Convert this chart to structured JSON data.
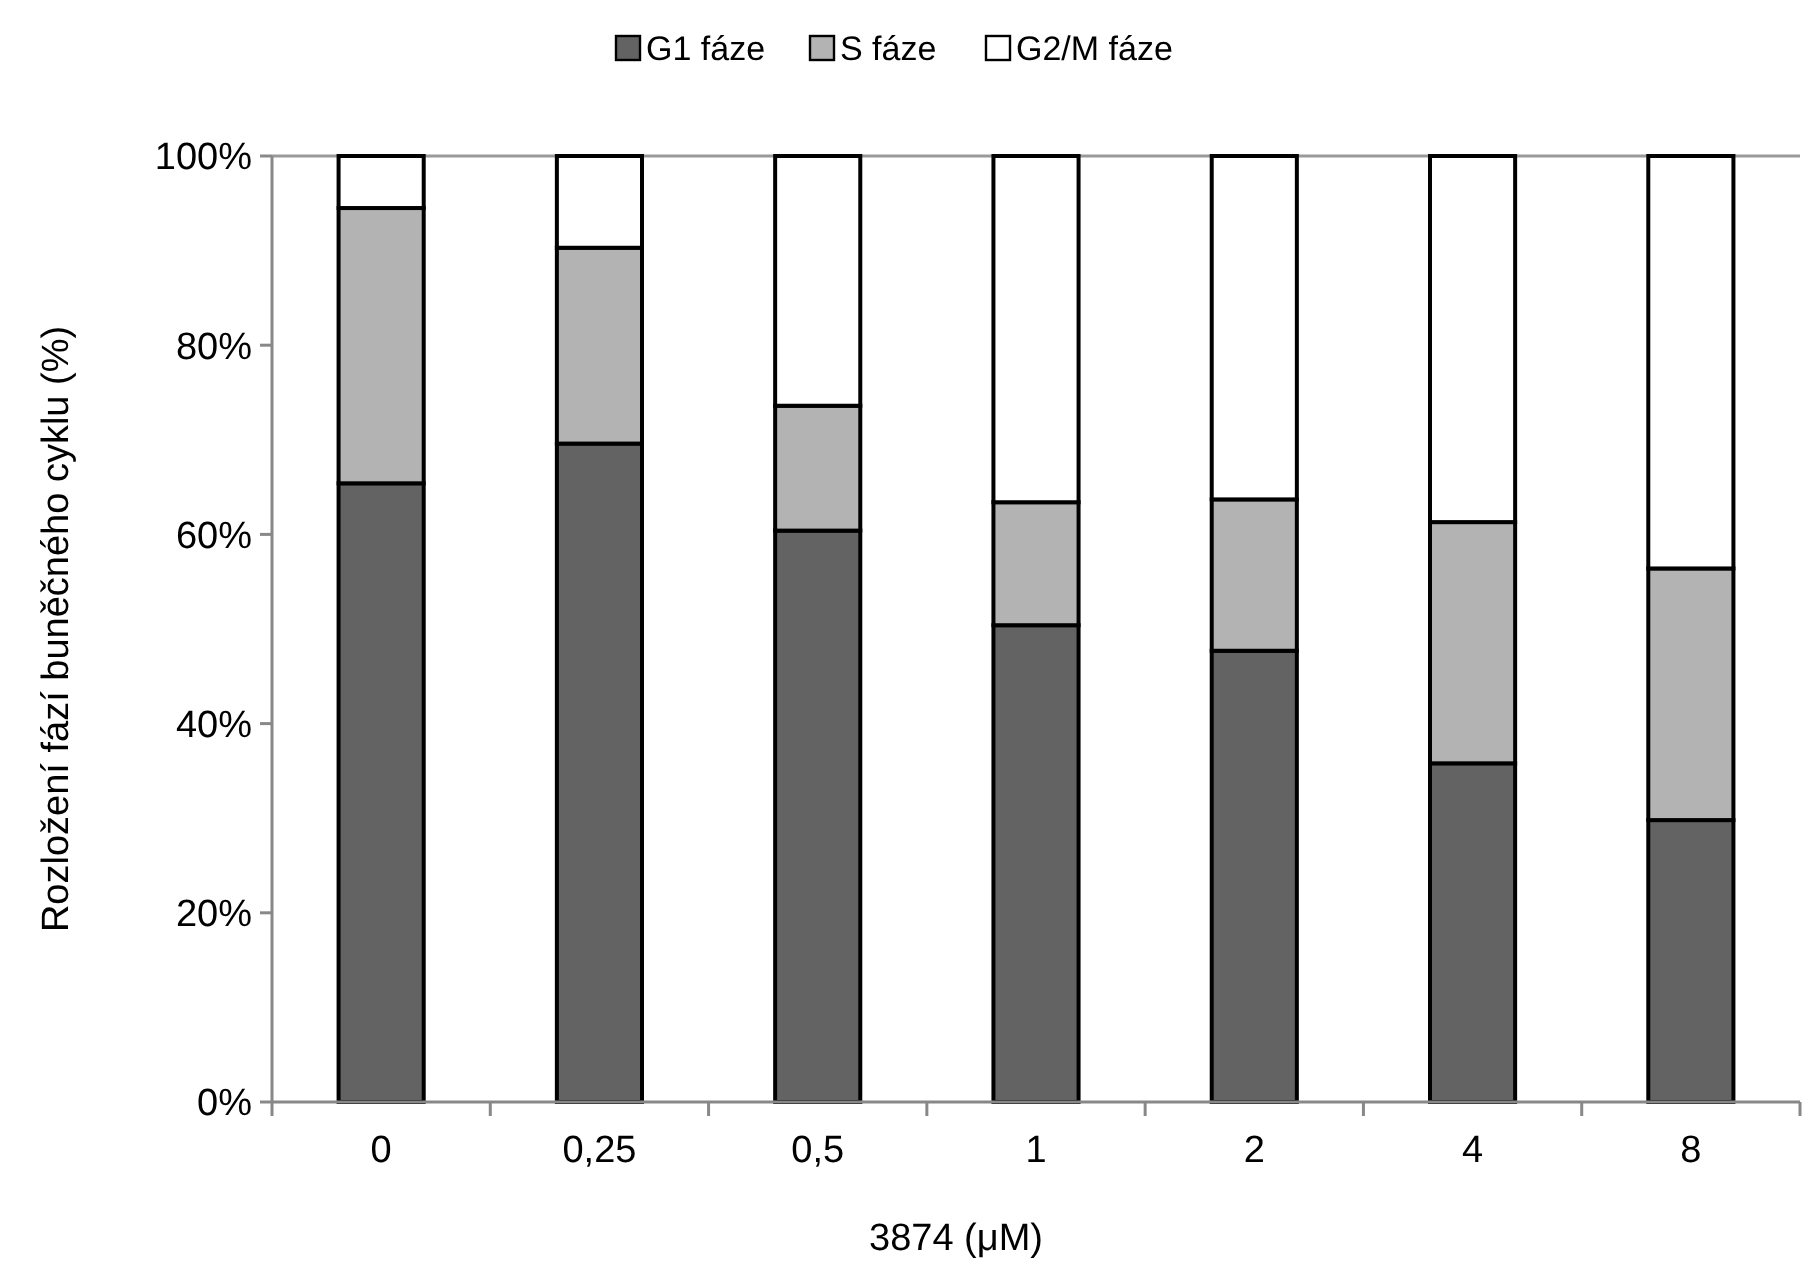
{
  "chart_data": {
    "type": "bar",
    "stacked": true,
    "xlabel": "3874 (μM)",
    "ylabel": "Rozložení fází buněčného cyklu (%)",
    "categories": [
      "0",
      "0,25",
      "0,5",
      "1",
      "2",
      "4",
      "8"
    ],
    "series": [
      {
        "name": "G1 fáze",
        "color": "#636363",
        "values": [
          65.4,
          69.6,
          60.4,
          50.4,
          47.7,
          35.8,
          29.8
        ]
      },
      {
        "name": "S fáze",
        "color": "#b3b3b3",
        "values": [
          29.1,
          20.7,
          13.2,
          13.0,
          16.0,
          25.5,
          26.6
        ]
      },
      {
        "name": "G2/M fáze",
        "color": "#ffffff",
        "values": [
          5.5,
          9.7,
          26.4,
          36.6,
          36.3,
          38.7,
          43.6
        ]
      }
    ],
    "ylim": [
      0,
      100
    ],
    "yticks": [
      {
        "value": 0,
        "label": "0%"
      },
      {
        "value": 20,
        "label": "20%"
      },
      {
        "value": 40,
        "label": "40%"
      },
      {
        "value": 60,
        "label": "60%"
      },
      {
        "value": 80,
        "label": "80%"
      },
      {
        "value": 100,
        "label": "100%"
      }
    ],
    "grid": false,
    "legend": "top"
  }
}
